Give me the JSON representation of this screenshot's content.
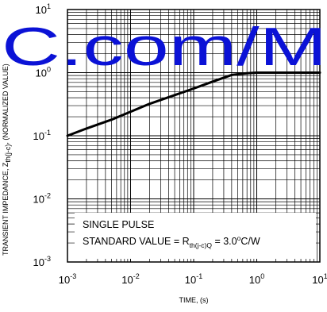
{
  "chart_data": {
    "type": "line",
    "scale": {
      "x": "log",
      "y": "log"
    },
    "xlabel": "TIME, (s)",
    "ylabel": {
      "prefix": "TRANSIENT  IMPEDANCE, Z",
      "sub": "th(j-c)",
      "suffix": ", (NORMALIZED VALUE)"
    },
    "xlim": [
      0.001,
      10
    ],
    "ylim": [
      0.001,
      10
    ],
    "x_ticks": [
      {
        "base": "10",
        "exp": "-3"
      },
      {
        "base": "10",
        "exp": "-2"
      },
      {
        "base": "10",
        "exp": "-1"
      },
      {
        "base": "10",
        "exp": "0"
      },
      {
        "base": "10",
        "exp": "1"
      }
    ],
    "y_ticks": [
      {
        "base": "10",
        "exp": "1"
      },
      {
        "base": "10",
        "exp": "0"
      },
      {
        "base": "10",
        "exp": "-1"
      },
      {
        "base": "10",
        "exp": "-2"
      },
      {
        "base": "10",
        "exp": "-3"
      }
    ],
    "grid": true,
    "series": [
      {
        "x": [
          0.001,
          0.002,
          0.005,
          0.01,
          0.02,
          0.05,
          0.1,
          0.2,
          0.4,
          0.7,
          1,
          2,
          5,
          10
        ],
        "y": [
          0.1,
          0.13,
          0.18,
          0.24,
          0.32,
          0.44,
          0.56,
          0.72,
          0.92,
          0.98,
          1.0,
          1.0,
          1.0,
          1.0
        ]
      }
    ],
    "annotation": {
      "line1": "SINGLE PULSE",
      "line2_prefix": "STANDARD VALUE = R",
      "line2_sub": "th(j-c)Q",
      "line2_mid": " = 3.0",
      "line2_sup": "o",
      "line2_suffix": "C/W"
    }
  },
  "watermark": {
    "text": "C.com/M",
    "color": "#0b12d6"
  }
}
